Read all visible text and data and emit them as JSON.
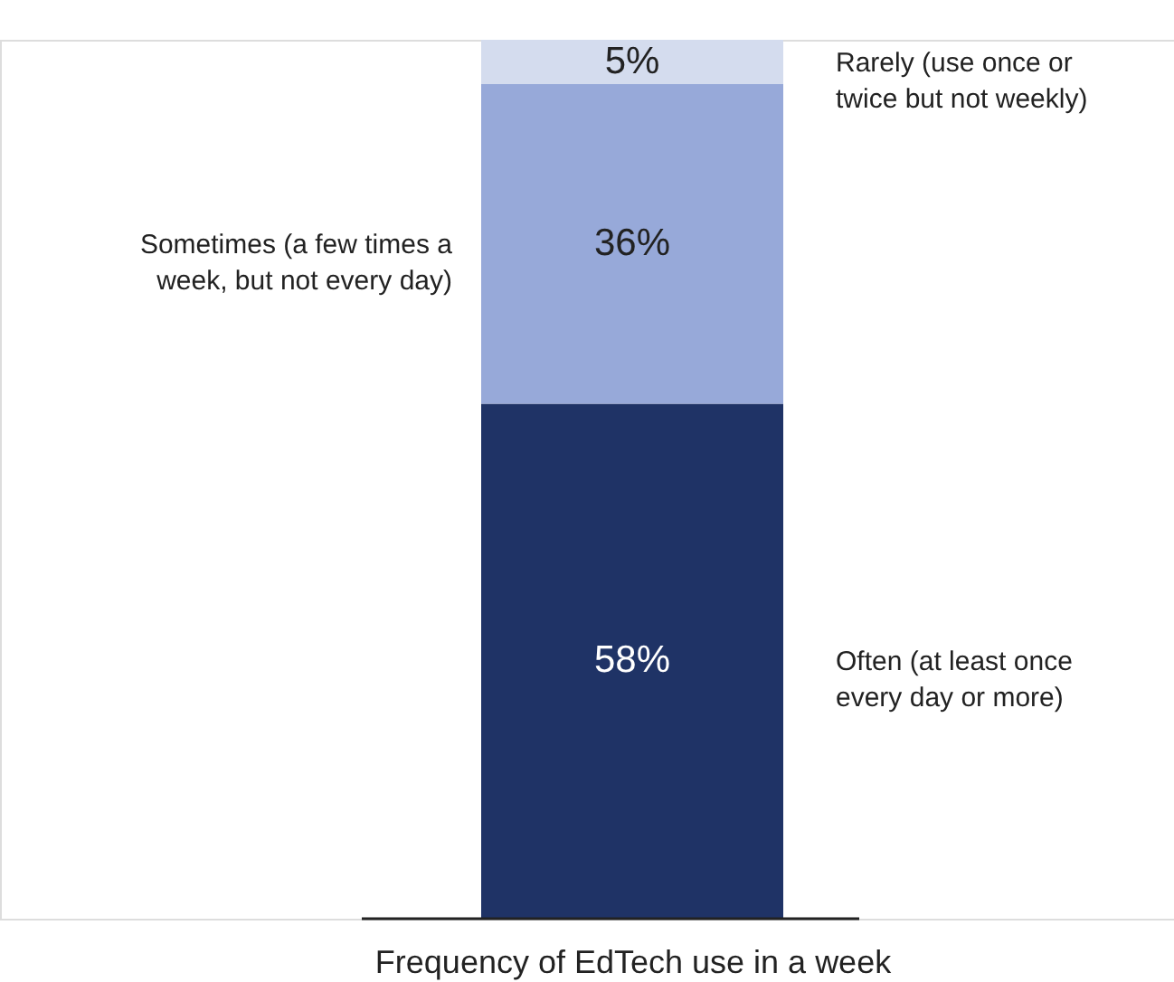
{
  "chart_data": {
    "type": "bar",
    "stacked": true,
    "xlabel": "Frequency of EdTech use in a week",
    "categories": [
      null
    ],
    "legend": false,
    "series": [
      {
        "name": "Often (at least once every day or more)",
        "color": "#1f3366",
        "values": [
          58
        ],
        "value_labels": [
          "58%"
        ]
      },
      {
        "name": "Sometimes (a few times a week, but not every day)",
        "color": "#97a9d9",
        "values": [
          36
        ],
        "value_labels": [
          "36%"
        ]
      },
      {
        "name": "Rarely (use once or twice but not weekly)",
        "color": "#d4dcee",
        "values": [
          5
        ],
        "value_labels": [
          "5%"
        ]
      }
    ]
  }
}
